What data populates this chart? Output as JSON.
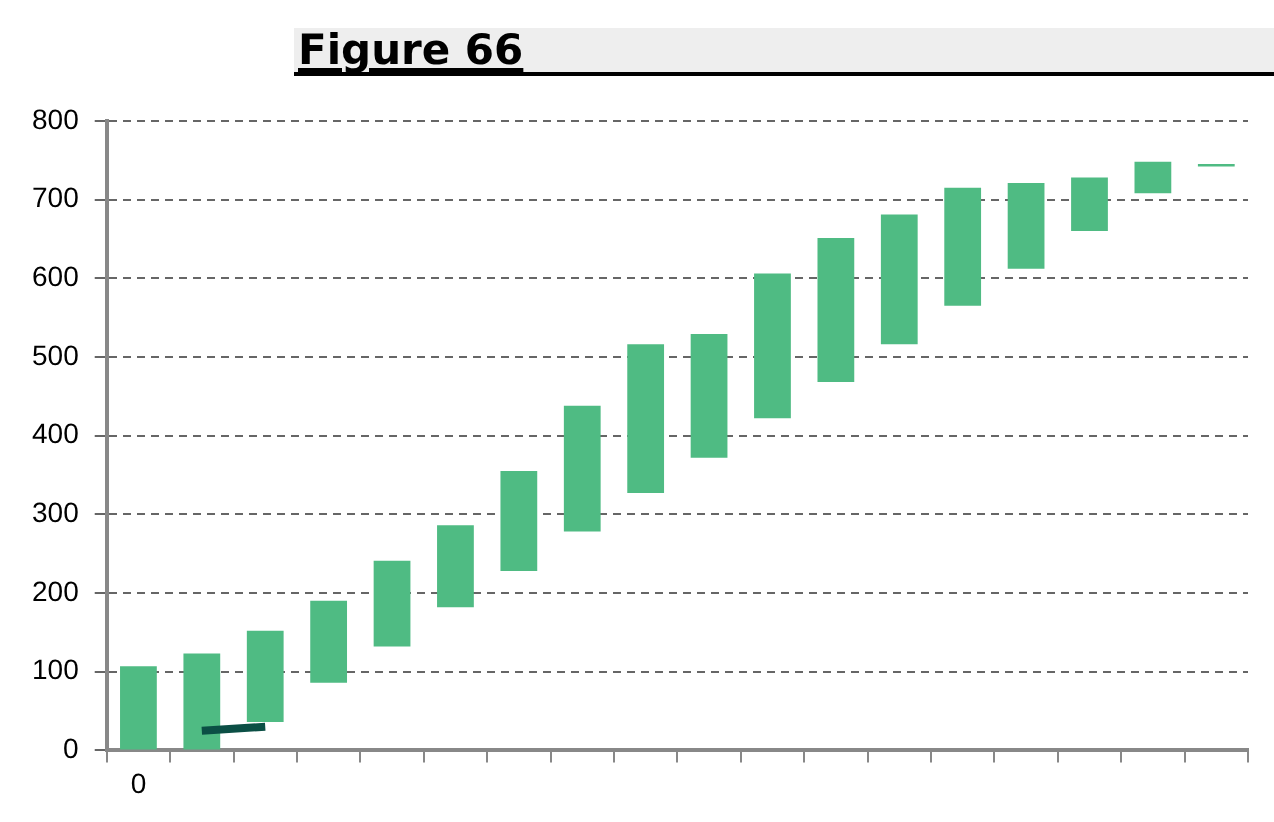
{
  "chart_data": {
    "type": "bar",
    "title": "Figure 66",
    "categories": [
      "0",
      null,
      null,
      null,
      null,
      null,
      null,
      null,
      null,
      null,
      null,
      null,
      null,
      null,
      null,
      null,
      null,
      null
    ],
    "series": [
      {
        "color": "#4fbb83",
        "base": [
          0,
          0,
          36,
          86,
          132,
          182,
          228,
          278,
          327,
          372,
          422,
          468,
          516,
          565,
          612,
          660,
          708,
          742
        ],
        "values": [
          107,
          123,
          116,
          104,
          109,
          104,
          127,
          160,
          189,
          157,
          184,
          183,
          165,
          150,
          109,
          68,
          40,
          3
        ]
      },
      {
        "type": "line",
        "color": "#0b4f45",
        "values": [
          null,
          25,
          30,
          null,
          null,
          null,
          null,
          null,
          null,
          null,
          null,
          null,
          null,
          null,
          null,
          null,
          null,
          null
        ]
      }
    ],
    "ylim": [
      0,
      800
    ],
    "yticks": [
      0,
      100,
      200,
      300,
      400,
      500,
      600,
      700,
      800
    ],
    "grid": "y",
    "legend": false
  }
}
